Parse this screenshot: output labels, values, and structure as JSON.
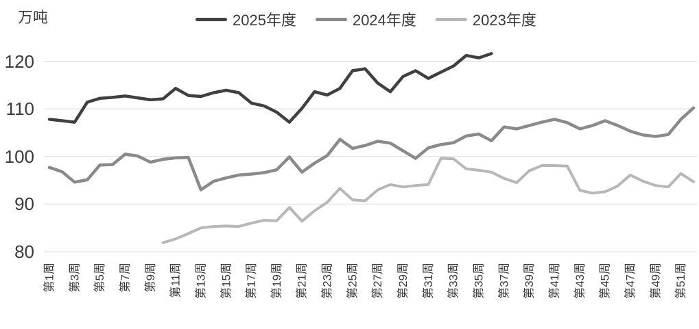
{
  "y_axis": {
    "unit": "万吨",
    "ticks": [
      80,
      90,
      100,
      110,
      120
    ]
  },
  "legend": {
    "items": [
      {
        "label": "2025年度",
        "color": "#404040"
      },
      {
        "label": "2024年度",
        "color": "#8a8a8a"
      },
      {
        "label": "2023年度",
        "color": "#b7b7b7"
      }
    ]
  },
  "chart_data": {
    "type": "line",
    "title": "",
    "xlabel": "",
    "ylabel": "万吨",
    "ylim": [
      80,
      120
    ],
    "grid": "horizontal",
    "legend_position": "top-center",
    "weeks_total": 52,
    "x_tick_labels": [
      "第1周",
      "第3周",
      "第5周",
      "第7周",
      "第9周",
      "第11周",
      "第13周",
      "第15周",
      "第17周",
      "第19周",
      "第21周",
      "第23周",
      "第25周",
      "第27周",
      "第29周",
      "第31周",
      "第33周",
      "第35周",
      "第37周",
      "第39周",
      "第41周",
      "第43周",
      "第45周",
      "第47周",
      "第49周",
      "第51周"
    ],
    "series": [
      {
        "name": "2025年度",
        "color": "#404040",
        "stroke_width": 4.5,
        "start_week": 1,
        "values": [
          107.8,
          107.5,
          107.2,
          111.4,
          112.2,
          112.4,
          112.7,
          112.3,
          111.9,
          112.1,
          114.3,
          112.8,
          112.6,
          113.4,
          113.9,
          113.4,
          111.2,
          110.6,
          109.3,
          107.2,
          110.1,
          113.6,
          112.9,
          114.3,
          118.0,
          118.4,
          115.4,
          113.6,
          116.8,
          118.0,
          116.4,
          117.7,
          119.0,
          121.2,
          120.7,
          121.6
        ]
      },
      {
        "name": "2024年度",
        "color": "#8a8a8a",
        "stroke_width": 4.5,
        "start_week": 1,
        "values": [
          97.7,
          96.8,
          94.6,
          95.1,
          98.2,
          98.3,
          100.5,
          100.1,
          98.8,
          99.4,
          99.7,
          99.8,
          93.0,
          94.8,
          95.5,
          96.1,
          96.3,
          96.6,
          97.2,
          99.9,
          96.7,
          98.6,
          100.2,
          103.6,
          101.7,
          102.3,
          103.2,
          102.8,
          101.2,
          99.6,
          101.8,
          102.5,
          102.9,
          104.3,
          104.7,
          103.3,
          106.2,
          105.8,
          106.5,
          107.2,
          107.8,
          107.1,
          105.8,
          106.5,
          107.5,
          106.5,
          105.3,
          104.5,
          104.2,
          104.6,
          107.8,
          110.2
        ]
      },
      {
        "name": "2023年度",
        "color": "#b7b7b7",
        "stroke_width": 4,
        "start_week": 10,
        "values": [
          81.9,
          82.7,
          83.8,
          85.0,
          85.3,
          85.4,
          85.3,
          86.0,
          86.6,
          86.5,
          89.3,
          86.4,
          88.6,
          90.4,
          93.3,
          90.9,
          90.7,
          93.0,
          94.1,
          93.6,
          93.9,
          94.1,
          99.6,
          99.5,
          97.4,
          97.1,
          96.7,
          95.4,
          94.5,
          97.0,
          98.1,
          98.1,
          98.0,
          92.9,
          92.3,
          92.6,
          93.8,
          96.1,
          94.8,
          93.9,
          93.6,
          96.4,
          94.7
        ]
      }
    ],
    "colors": {
      "gridline": "#d9d9d9",
      "text": "#3b3b3b",
      "background": "#ffffff"
    }
  }
}
